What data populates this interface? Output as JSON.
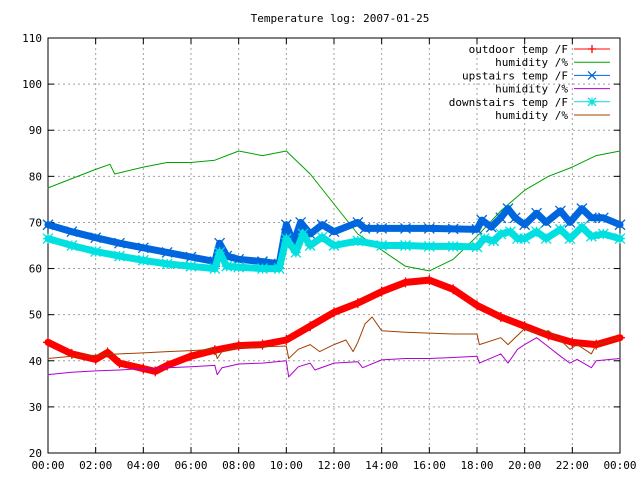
{
  "chart_data": {
    "type": "line",
    "title": "Temperature log: 2007-01-25",
    "xlabel": "",
    "ylabel": "",
    "ylim": [
      20,
      110
    ],
    "xlim_hours": [
      0,
      24
    ],
    "grid": true,
    "legend_position": "top-right",
    "x_tick_labels": [
      "00:00",
      "02:00",
      "04:00",
      "06:00",
      "08:00",
      "10:00",
      "12:00",
      "14:00",
      "16:00",
      "18:00",
      "20:00",
      "22:00",
      "00:00"
    ],
    "y_ticks": [
      20,
      30,
      40,
      50,
      60,
      70,
      80,
      90,
      100,
      110
    ],
    "series": [
      {
        "name": "outdoor temp /F",
        "color": "#ff0000",
        "marker": "plus",
        "thick": true,
        "points": [
          [
            0,
            44
          ],
          [
            1,
            41.5
          ],
          [
            2,
            40.3
          ],
          [
            2.5,
            41.8
          ],
          [
            3,
            39.5
          ],
          [
            4,
            38.3
          ],
          [
            4.5,
            37.7
          ],
          [
            5,
            39
          ],
          [
            6,
            41
          ],
          [
            7,
            42.3
          ],
          [
            8,
            43.3
          ],
          [
            9,
            43.5
          ],
          [
            10,
            44.5
          ],
          [
            11,
            47.5
          ],
          [
            12,
            50.5
          ],
          [
            13,
            52.5
          ],
          [
            14,
            55
          ],
          [
            15,
            57
          ],
          [
            16,
            57.5
          ],
          [
            17,
            55.5
          ],
          [
            18,
            52
          ],
          [
            19,
            49.5
          ],
          [
            20,
            47.5
          ],
          [
            21,
            45.5
          ],
          [
            22,
            44
          ],
          [
            23,
            43.5
          ],
          [
            24,
            45
          ]
        ]
      },
      {
        "name": "humidity /%",
        "color": "#00a000",
        "marker": "none",
        "thick": false,
        "points": [
          [
            0,
            77.5
          ],
          [
            1,
            79.5
          ],
          [
            2,
            81.5
          ],
          [
            2.6,
            82.6
          ],
          [
            2.8,
            80.5
          ],
          [
            4,
            82
          ],
          [
            5,
            83
          ],
          [
            6,
            83
          ],
          [
            7,
            83.5
          ],
          [
            8,
            85.5
          ],
          [
            9,
            84.5
          ],
          [
            10,
            85.5
          ],
          [
            11,
            80.5
          ],
          [
            12,
            74
          ],
          [
            13,
            67.5
          ],
          [
            14,
            64
          ],
          [
            15,
            60.5
          ],
          [
            16,
            59.5
          ],
          [
            17,
            62
          ],
          [
            18,
            67
          ],
          [
            19,
            72.5
          ],
          [
            20,
            77
          ],
          [
            21,
            80
          ],
          [
            22,
            82
          ],
          [
            23,
            84.5
          ],
          [
            24,
            85.5
          ]
        ]
      },
      {
        "name": "upstairs temp /F",
        "color": "#0066dd",
        "marker": "x",
        "thick": true,
        "points": [
          [
            0,
            69.5
          ],
          [
            1,
            68
          ],
          [
            2,
            66.7
          ],
          [
            3,
            65.5
          ],
          [
            4,
            64.5
          ],
          [
            5,
            63.5
          ],
          [
            6,
            62.5
          ],
          [
            7,
            61.5
          ],
          [
            7.2,
            65.5
          ],
          [
            7.5,
            62.7
          ],
          [
            8,
            62
          ],
          [
            9,
            61.5
          ],
          [
            9.7,
            61
          ],
          [
            10,
            69.5
          ],
          [
            10.3,
            65.5
          ],
          [
            10.6,
            70
          ],
          [
            11,
            67.5
          ],
          [
            11.5,
            69.5
          ],
          [
            12,
            68
          ],
          [
            13,
            70
          ],
          [
            13.3,
            68.7
          ],
          [
            14,
            68.7
          ],
          [
            15,
            68.7
          ],
          [
            16,
            68.7
          ],
          [
            17,
            68.6
          ],
          [
            18,
            68.5
          ],
          [
            18.2,
            70.5
          ],
          [
            18.6,
            69
          ],
          [
            19,
            71
          ],
          [
            19.3,
            73
          ],
          [
            19.6,
            71
          ],
          [
            20,
            69.5
          ],
          [
            20.5,
            72
          ],
          [
            20.9,
            70
          ],
          [
            21.5,
            72.5
          ],
          [
            21.9,
            70
          ],
          [
            22.4,
            73
          ],
          [
            22.8,
            71
          ],
          [
            23.3,
            71
          ],
          [
            24,
            69.5
          ]
        ]
      },
      {
        "name": "humidity /%",
        "color": "#b000d0",
        "marker": "none",
        "thick": false,
        "points": [
          [
            0,
            37
          ],
          [
            1,
            37.5
          ],
          [
            2,
            37.8
          ],
          [
            3,
            38
          ],
          [
            4,
            38.3
          ],
          [
            5,
            38.5
          ],
          [
            6,
            38.7
          ],
          [
            7,
            39
          ],
          [
            7.1,
            37
          ],
          [
            7.3,
            38.5
          ],
          [
            8,
            39.3
          ],
          [
            9,
            39.5
          ],
          [
            10,
            40
          ],
          [
            10.1,
            36.5
          ],
          [
            10.5,
            38.7
          ],
          [
            11,
            39.5
          ],
          [
            11.2,
            38
          ],
          [
            12,
            39.5
          ],
          [
            13,
            39.8
          ],
          [
            13.2,
            38.5
          ],
          [
            14,
            40.2
          ],
          [
            15,
            40.5
          ],
          [
            16,
            40.5
          ],
          [
            17,
            40.7
          ],
          [
            18,
            41
          ],
          [
            18.1,
            39.5
          ],
          [
            19,
            41.5
          ],
          [
            19.3,
            39.5
          ],
          [
            19.7,
            42.5
          ],
          [
            20,
            43.5
          ],
          [
            20.5,
            45
          ],
          [
            21,
            43
          ],
          [
            21.5,
            41
          ],
          [
            21.9,
            39.5
          ],
          [
            22.2,
            40.3
          ],
          [
            22.8,
            38.5
          ],
          [
            23,
            40
          ],
          [
            24,
            40.5
          ]
        ]
      },
      {
        "name": "downstairs temp /F",
        "color": "#00e0e0",
        "marker": "star",
        "thick": true,
        "points": [
          [
            0,
            66.5
          ],
          [
            1,
            65
          ],
          [
            2,
            63.7
          ],
          [
            3,
            62.7
          ],
          [
            4,
            61.8
          ],
          [
            5,
            61
          ],
          [
            6,
            60.5
          ],
          [
            7,
            60
          ],
          [
            7.2,
            63.5
          ],
          [
            7.5,
            60.5
          ],
          [
            8,
            60.3
          ],
          [
            9,
            60
          ],
          [
            9.7,
            60
          ],
          [
            10,
            66.5
          ],
          [
            10.4,
            63.5
          ],
          [
            10.7,
            67.5
          ],
          [
            11,
            65
          ],
          [
            11.5,
            66.8
          ],
          [
            12,
            65
          ],
          [
            13,
            66
          ],
          [
            14,
            65
          ],
          [
            15,
            65
          ],
          [
            16,
            64.8
          ],
          [
            17,
            64.8
          ],
          [
            18,
            64.7
          ],
          [
            18.3,
            66.5
          ],
          [
            18.7,
            66
          ],
          [
            19,
            67.5
          ],
          [
            19.4,
            68
          ],
          [
            19.7,
            66.5
          ],
          [
            20,
            66.5
          ],
          [
            20.5,
            68
          ],
          [
            20.9,
            66.5
          ],
          [
            21.5,
            68.5
          ],
          [
            21.9,
            66.5
          ],
          [
            22.4,
            69
          ],
          [
            22.8,
            67
          ],
          [
            23.3,
            67.5
          ],
          [
            24,
            66.5
          ]
        ]
      },
      {
        "name": "humidity /%",
        "color": "#a04000",
        "marker": "none",
        "thick": false,
        "points": [
          [
            0,
            40.5
          ],
          [
            1,
            41
          ],
          [
            2,
            41.2
          ],
          [
            3,
            41.5
          ],
          [
            4,
            41.7
          ],
          [
            5,
            42
          ],
          [
            6,
            42.2
          ],
          [
            7,
            42.5
          ],
          [
            7.1,
            40.5
          ],
          [
            7.3,
            42
          ],
          [
            8,
            43
          ],
          [
            9,
            43
          ],
          [
            10,
            43.2
          ],
          [
            10.1,
            40.5
          ],
          [
            10.5,
            42.5
          ],
          [
            11,
            43.5
          ],
          [
            11.4,
            42
          ],
          [
            12,
            43.5
          ],
          [
            12.5,
            44.5
          ],
          [
            12.8,
            42
          ],
          [
            13,
            44
          ],
          [
            13.3,
            48
          ],
          [
            13.6,
            49.5
          ],
          [
            14,
            46.5
          ],
          [
            15,
            46.2
          ],
          [
            16,
            46
          ],
          [
            17,
            45.8
          ],
          [
            18,
            45.8
          ],
          [
            18.1,
            43.5
          ],
          [
            19,
            45
          ],
          [
            19.3,
            43.5
          ],
          [
            20,
            47
          ],
          [
            20.5,
            46
          ],
          [
            21,
            46.5
          ],
          [
            21.5,
            44.5
          ],
          [
            21.9,
            42.5
          ],
          [
            22.2,
            43.5
          ],
          [
            22.8,
            41.5
          ],
          [
            23,
            43.5
          ],
          [
            24,
            45
          ]
        ]
      }
    ]
  }
}
